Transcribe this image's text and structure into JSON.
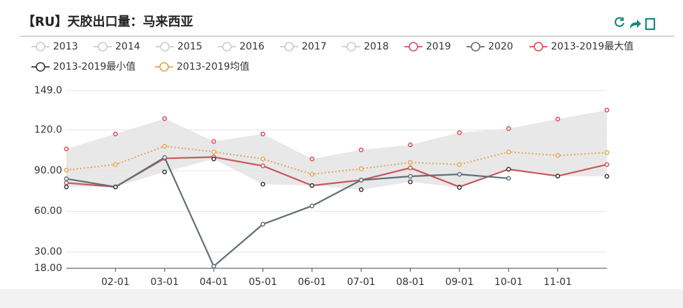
{
  "chart_data": {
    "type": "line",
    "title": "【RU】天胶出口量：马来西亚",
    "categories": [
      null,
      "02-01",
      "03-01",
      "04-01",
      "05-01",
      "06-01",
      "07-01",
      "08-01",
      "09-01",
      "10-01",
      "11-01",
      null
    ],
    "legend_hidden": [
      "2013",
      "2014",
      "2015",
      "2016",
      "2017",
      "2018"
    ],
    "series": [
      {
        "name": "2019",
        "color": "#c9565a",
        "style": "line",
        "values": [
          81,
          78,
          99,
          100,
          93.5,
          79,
          83,
          92,
          78,
          91,
          86,
          94.5
        ]
      },
      {
        "name": "2020",
        "color": "#5f6e78",
        "style": "line",
        "values": [
          84,
          78,
          99.7,
          19.5,
          50.5,
          64,
          83,
          85.8,
          87.3,
          84.3,
          null,
          null
        ]
      },
      {
        "name": "2013-2019最大值",
        "color": "#e0474c",
        "style": "points",
        "values": [
          106,
          117,
          128.4,
          111.5,
          117,
          98.6,
          105.3,
          109,
          118,
          121,
          128,
          134.6
        ]
      },
      {
        "name": "2013-2019最小值",
        "color": "#333333",
        "style": "points",
        "values": [
          78,
          78,
          89,
          98.6,
          80,
          79,
          76,
          81.7,
          77.6,
          91,
          86,
          85.8
        ]
      },
      {
        "name": "2013-2019均值",
        "color": "#e3a44f",
        "style": "dotted",
        "values": [
          90.4,
          94.5,
          108,
          103.8,
          98.6,
          87.3,
          91.4,
          96,
          94.5,
          103.8,
          101.2,
          103.3
        ]
      }
    ],
    "ylim": [
      18,
      149
    ],
    "yticks": [
      {
        "value": 18,
        "label": "18.00"
      },
      {
        "value": 30,
        "label": "30.00"
      },
      {
        "value": 60,
        "label": "60.00"
      },
      {
        "value": 90,
        "label": "90.00"
      },
      {
        "value": 120,
        "label": "120.0"
      },
      {
        "value": 149,
        "label": "149.0"
      }
    ],
    "grid": true
  }
}
